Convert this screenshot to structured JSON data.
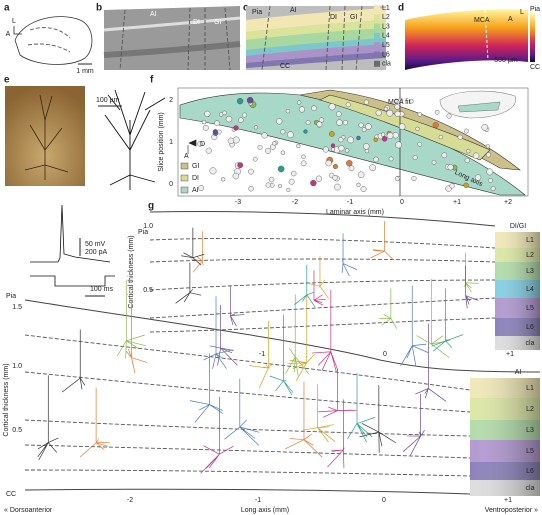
{
  "panels": {
    "a": {
      "label": "a",
      "compass": [
        "L",
        "A"
      ],
      "scale": "1 mm"
    },
    "b": {
      "label": "b",
      "regions": [
        "AI",
        "DI",
        "GI"
      ]
    },
    "c": {
      "label": "c",
      "pia": "Pia",
      "regions": [
        "AI",
        "DI",
        "GI"
      ],
      "cc": "CC",
      "legend": [
        "L1",
        "L2",
        "L3",
        "L4",
        "L5",
        "L6",
        "cla"
      ]
    },
    "d": {
      "label": "d",
      "mca": "MCA",
      "compass": [
        "A",
        "L"
      ],
      "scale": "500 µm",
      "pia": "Pia",
      "cc": "CC"
    },
    "e": {
      "label": "e",
      "scale": "100 µm",
      "voltage": "50 mV",
      "current": "200 pA",
      "time": "100 ms"
    },
    "f": {
      "label": "f",
      "fit": "MCA fit",
      "compass": [
        "D",
        "A"
      ],
      "legend": [
        "GI",
        "DI",
        "AI"
      ],
      "y_label": "Slice position (mm)",
      "y_ticks": [
        "2",
        "1",
        "0"
      ],
      "x_label": "Laminar axis (mm)",
      "x_ticks": [
        "-3",
        "-2",
        "-1",
        "0",
        "+1",
        "+2"
      ],
      "long_axis": "Long axis"
    },
    "g": {
      "label": "g",
      "upper": {
        "pia": "Pia",
        "region": "DI/GI",
        "layers": [
          "L1",
          "L2",
          "L3",
          "L4",
          "L5",
          "L6",
          "cla"
        ],
        "y_label": "Cortical thickness (mm)",
        "y_ticks": [
          "1.0",
          "0.5"
        ],
        "x_ticks": [
          "-1",
          "0",
          "+1"
        ]
      },
      "lower": {
        "pia": "Pia",
        "cc": "CC",
        "region": "AI",
        "layers": [
          "L1",
          "L2",
          "L3",
          "L5",
          "L6",
          "cla"
        ],
        "y_label": "Cortical thickness (mm)",
        "y_ticks": [
          "1.5",
          "1.0",
          "0.5"
        ],
        "x_ticks": [
          "-2",
          "-1",
          "0",
          "+1"
        ],
        "x_label": "Long axis (mm)",
        "left": "« Dorsoanterior",
        "right": "Ventroposterior »"
      }
    }
  }
}
